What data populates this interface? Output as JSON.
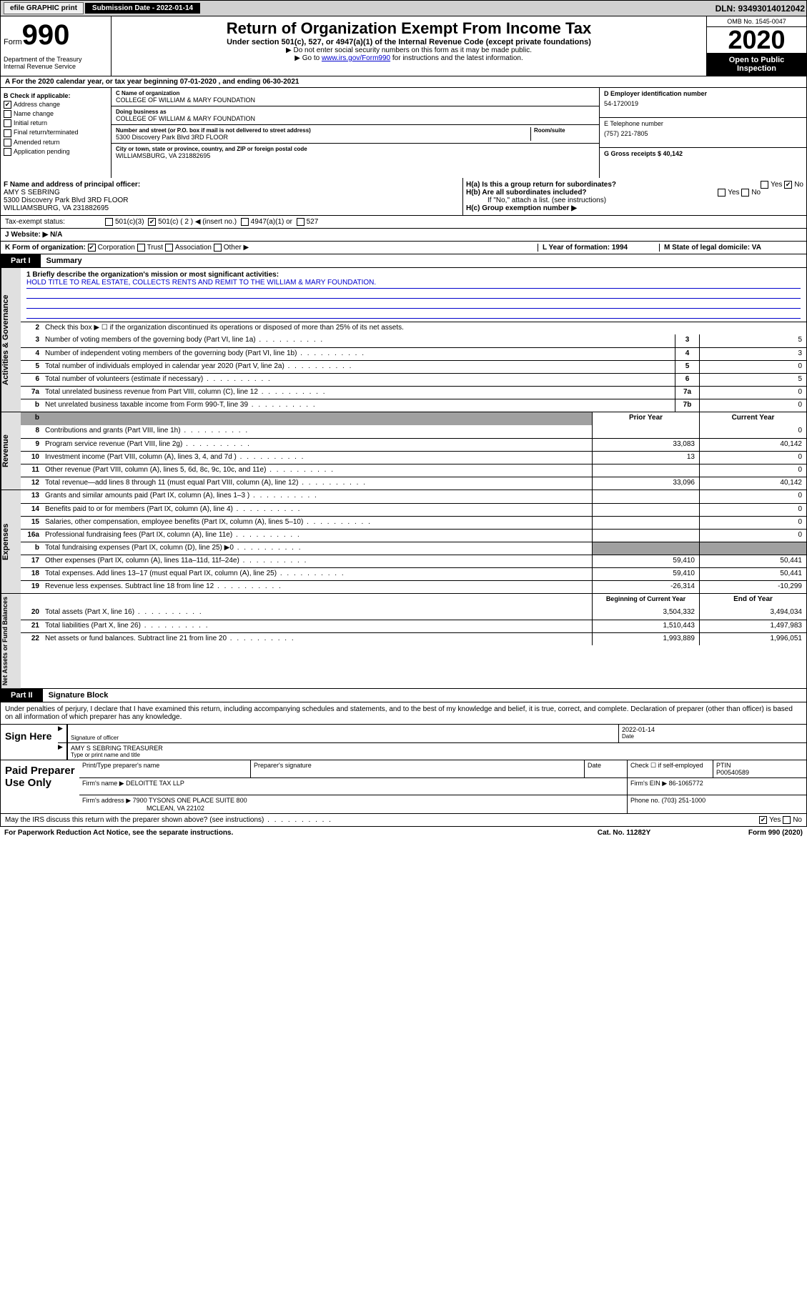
{
  "top": {
    "efile": "efile GRAPHIC print",
    "sub_label": "Submission Date - 2022-01-14",
    "dln": "DLN: 93493014012042"
  },
  "header": {
    "form_word": "Form",
    "form_num": "990",
    "dept": "Department of the Treasury\nInternal Revenue Service",
    "title": "Return of Organization Exempt From Income Tax",
    "subtitle": "Under section 501(c), 527, or 4947(a)(1) of the Internal Revenue Code (except private foundations)",
    "instr1": "▶ Do not enter social security numbers on this form as it may be made public.",
    "instr2_pre": "▶ Go to ",
    "instr2_link": "www.irs.gov/Form990",
    "instr2_post": " for instructions and the latest information.",
    "omb": "OMB No. 1545-0047",
    "year": "2020",
    "open": "Open to Public Inspection"
  },
  "rowA": "A For the 2020 calendar year, or tax year beginning 07-01-2020   , and ending 06-30-2021",
  "boxB": {
    "label": "B Check if applicable:",
    "items": [
      "Address change",
      "Name change",
      "Initial return",
      "Final return/terminated",
      "Amended return",
      "Application pending"
    ]
  },
  "boxC": {
    "name_label": "C Name of organization",
    "name": "COLLEGE OF WILLIAM & MARY FOUNDATION",
    "dba_label": "Doing business as",
    "dba": "COLLEGE OF WILLIAM & MARY FOUNDATION",
    "addr_label": "Number and street (or P.O. box if mail is not delivered to street address)",
    "room_label": "Room/suite",
    "addr": "5300 Discovery Park Blvd 3RD FLOOR",
    "city_label": "City or town, state or province, country, and ZIP or foreign postal code",
    "city": "WILLIAMSBURG, VA  231882695"
  },
  "boxD": {
    "label": "D Employer identification number",
    "val": "54-1720019"
  },
  "boxE": {
    "label": "E Telephone number",
    "val": "(757) 221-7805"
  },
  "boxG": "G Gross receipts $ 40,142",
  "boxF": {
    "label": "F Name and address of principal officer:",
    "name": "AMY S SEBRING",
    "addr1": "5300 Discovery Park Blvd 3RD FLOOR",
    "addr2": "WILLIAMSBURG, VA  231882695"
  },
  "boxH": {
    "ha": "H(a)  Is this a group return for subordinates?",
    "hb": "H(b)  Are all subordinates included?",
    "hb_note": "If \"No,\" attach a list. (see instructions)",
    "hc": "H(c)  Group exemption number ▶"
  },
  "taxStatus": {
    "label": "Tax-exempt status:",
    "opts": [
      "501(c)(3)",
      "501(c) ( 2 ) ◀ (insert no.)",
      "4947(a)(1) or",
      "527"
    ]
  },
  "rowJ": "J   Website: ▶  N/A",
  "rowK": {
    "k": "K Form of organization:",
    "opts": [
      "Corporation",
      "Trust",
      "Association",
      "Other ▶"
    ],
    "l": "L Year of formation: 1994",
    "m": "M State of legal domicile: VA"
  },
  "part1": {
    "tab": "Part I",
    "title": "Summary"
  },
  "mission": {
    "label": "1  Briefly describe the organization's mission or most significant activities:",
    "text": "HOLD TITLE TO REAL ESTATE, COLLECTS RENTS AND REMIT TO THE WILLIAM & MARY FOUNDATION."
  },
  "gov": {
    "sidebar": "Activities & Governance",
    "l2": "Check this box ▶ ☐  if the organization discontinued its operations or disposed of more than 25% of its net assets.",
    "rows": [
      {
        "n": "3",
        "t": "Number of voting members of the governing body (Part VI, line 1a)",
        "m": "3",
        "v": "5"
      },
      {
        "n": "4",
        "t": "Number of independent voting members of the governing body (Part VI, line 1b)",
        "m": "4",
        "v": "3"
      },
      {
        "n": "5",
        "t": "Total number of individuals employed in calendar year 2020 (Part V, line 2a)",
        "m": "5",
        "v": "0"
      },
      {
        "n": "6",
        "t": "Total number of volunteers (estimate if necessary)",
        "m": "6",
        "v": "5"
      },
      {
        "n": "7a",
        "t": "Total unrelated business revenue from Part VIII, column (C), line 12",
        "m": "7a",
        "v": "0"
      },
      {
        "n": "b",
        "t": "Net unrelated business taxable income from Form 990-T, line 39",
        "m": "7b",
        "v": "0"
      }
    ]
  },
  "rev": {
    "sidebar": "Revenue",
    "hdr": {
      "prior": "Prior Year",
      "curr": "Current Year"
    },
    "rows": [
      {
        "n": "8",
        "t": "Contributions and grants (Part VIII, line 1h)",
        "p": "",
        "c": "0"
      },
      {
        "n": "9",
        "t": "Program service revenue (Part VIII, line 2g)",
        "p": "33,083",
        "c": "40,142"
      },
      {
        "n": "10",
        "t": "Investment income (Part VIII, column (A), lines 3, 4, and 7d )",
        "p": "13",
        "c": "0"
      },
      {
        "n": "11",
        "t": "Other revenue (Part VIII, column (A), lines 5, 6d, 8c, 9c, 10c, and 11e)",
        "p": "",
        "c": "0"
      },
      {
        "n": "12",
        "t": "Total revenue—add lines 8 through 11 (must equal Part VIII, column (A), line 12)",
        "p": "33,096",
        "c": "40,142"
      }
    ]
  },
  "exp": {
    "sidebar": "Expenses",
    "rows": [
      {
        "n": "13",
        "t": "Grants and similar amounts paid (Part IX, column (A), lines 1–3 )",
        "p": "",
        "c": "0"
      },
      {
        "n": "14",
        "t": "Benefits paid to or for members (Part IX, column (A), line 4)",
        "p": "",
        "c": "0"
      },
      {
        "n": "15",
        "t": "Salaries, other compensation, employee benefits (Part IX, column (A), lines 5–10)",
        "p": "",
        "c": "0"
      },
      {
        "n": "16a",
        "t": "Professional fundraising fees (Part IX, column (A), line 11e)",
        "p": "",
        "c": "0"
      },
      {
        "n": "b",
        "t": "Total fundraising expenses (Part IX, column (D), line 25) ▶0",
        "p": "shade",
        "c": "shade"
      },
      {
        "n": "17",
        "t": "Other expenses (Part IX, column (A), lines 11a–11d, 11f–24e)",
        "p": "59,410",
        "c": "50,441"
      },
      {
        "n": "18",
        "t": "Total expenses. Add lines 13–17 (must equal Part IX, column (A), line 25)",
        "p": "59,410",
        "c": "50,441"
      },
      {
        "n": "19",
        "t": "Revenue less expenses. Subtract line 18 from line 12",
        "p": "-26,314",
        "c": "-10,299"
      }
    ]
  },
  "net": {
    "sidebar": "Net Assets or Fund Balances",
    "hdr": {
      "prior": "Beginning of Current Year",
      "curr": "End of Year"
    },
    "rows": [
      {
        "n": "20",
        "t": "Total assets (Part X, line 16)",
        "p": "3,504,332",
        "c": "3,494,034"
      },
      {
        "n": "21",
        "t": "Total liabilities (Part X, line 26)",
        "p": "1,510,443",
        "c": "1,497,983"
      },
      {
        "n": "22",
        "t": "Net assets or fund balances. Subtract line 21 from line 20",
        "p": "1,993,889",
        "c": "1,996,051"
      }
    ]
  },
  "part2": {
    "tab": "Part II",
    "title": "Signature Block"
  },
  "perjury": "Under penalties of perjury, I declare that I have examined this return, including accompanying schedules and statements, and to the best of my knowledge and belief, it is true, correct, and complete. Declaration of preparer (other than officer) is based on all information of which preparer has any knowledge.",
  "sign": {
    "here": "Sign Here",
    "sig_label": "Signature of officer",
    "date_label": "Date",
    "date": "2022-01-14",
    "name": "AMY S SEBRING  TREASURER",
    "name_label": "Type or print name and title"
  },
  "prep": {
    "title": "Paid Preparer Use Only",
    "h1": "Print/Type preparer's name",
    "h2": "Preparer's signature",
    "h3": "Date",
    "h4": "Check ☐ if self-employed",
    "h5": "PTIN",
    "ptin": "P00540589",
    "firm_label": "Firm's name   ▶",
    "firm": "DELOITTE TAX LLP",
    "ein_label": "Firm's EIN ▶",
    "ein": "86-1065772",
    "addr_label": "Firm's address ▶",
    "addr": "7900 TYSONS ONE PLACE SUITE 800",
    "addr2": "MCLEAN, VA  22102",
    "phone_label": "Phone no.",
    "phone": "(703) 251-1000"
  },
  "discuss": "May the IRS discuss this return with the preparer shown above? (see instructions)",
  "footer": {
    "left": "For Paperwork Reduction Act Notice, see the separate instructions.",
    "mid": "Cat. No. 11282Y",
    "right": "Form 990 (2020)"
  }
}
